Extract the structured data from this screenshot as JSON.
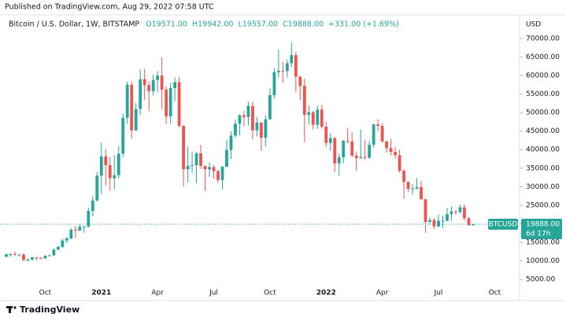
{
  "published": "Published on TradingView.com, Aug 29, 2022 07:58 UTC",
  "footer": "TradingView",
  "chart_data": {
    "type": "candlestick",
    "symbol": "Bitcoin / U.S. Dollar, 1W, BITSTAMP",
    "ohlc_labels": [
      "O19571.00",
      "H19942.00",
      "L19557.00",
      "C19888.00",
      "+331.00 (+1.69%)"
    ],
    "currency": "USD",
    "up_color": "#26a69a",
    "down_color": "#ef5350",
    "categories": [
      null,
      null,
      null,
      null,
      null,
      null,
      null,
      null,
      null,
      "Oct",
      null,
      null,
      null,
      null,
      null,
      null,
      null,
      null,
      null,
      null,
      null,
      null,
      "2021",
      null,
      null,
      null,
      null,
      null,
      null,
      null,
      null,
      null,
      null,
      null,
      null,
      "Apr",
      null,
      null,
      null,
      null,
      null,
      null,
      null,
      null,
      null,
      null,
      null,
      null,
      "Jul",
      null,
      null,
      null,
      null,
      null,
      null,
      null,
      null,
      null,
      null,
      null,
      null,
      "Oct",
      null,
      null,
      null,
      null,
      null,
      null,
      null,
      null,
      null,
      null,
      null,
      null,
      "2022",
      null,
      null,
      null,
      null,
      null,
      null,
      null,
      null,
      null,
      null,
      null,
      null,
      "Apr",
      null,
      null,
      null,
      null,
      null,
      null,
      null,
      null,
      null,
      null,
      null,
      null,
      "Jul",
      null,
      null,
      null,
      null,
      null,
      null,
      null,
      null,
      null,
      null,
      null,
      null,
      "Oct"
    ],
    "open": [
      11100,
      11780,
      11850,
      11650,
      11680,
      10250,
      10330,
      10940,
      10780,
      10670,
      11380,
      11500,
      13030,
      13760,
      15480,
      16050,
      18400,
      18190,
      19170,
      19270,
      23480,
      26280,
      33000,
      38200,
      35800,
      32270,
      33100,
      38900,
      48600,
      57500,
      45200,
      50970,
      59000,
      57400,
      55800,
      58800,
      60000,
      56200,
      49000,
      56600,
      58200,
      46400,
      34700,
      35600,
      35800,
      39000,
      35600,
      34700,
      35300,
      34200,
      31800,
      35400,
      39900,
      43800,
      47000,
      49300,
      48800,
      51800,
      45200,
      47300,
      43200,
      48200,
      54700,
      60900,
      61300,
      61200,
      63300,
      65500,
      59700,
      57200,
      49400,
      50100,
      46700,
      50800,
      46200,
      41800,
      43100,
      36300,
      37900,
      42400,
      42200,
      38400,
      37700,
      38000,
      37800,
      41300,
      46800,
      46400,
      42200,
      40400,
      39400,
      38500,
      34300,
      31300,
      29400,
      29500,
      29900,
      26600,
      20500,
      21000,
      19300,
      20800,
      20800,
      22600,
      23300,
      23180,
      24440,
      21500,
      19571,
      null,
      null,
      null,
      null,
      null
    ],
    "high": [
      11900,
      12090,
      12480,
      11800,
      12090,
      10600,
      11100,
      10990,
      10950,
      11500,
      11720,
      13350,
      14080,
      15960,
      16480,
      18800,
      19480,
      19920,
      19400,
      24300,
      27400,
      34000,
      41900,
      40100,
      37900,
      38500,
      40950,
      49700,
      58300,
      58400,
      52600,
      61700,
      61800,
      58400,
      60200,
      61200,
      64900,
      57100,
      58000,
      59500,
      59600,
      46600,
      40800,
      39500,
      39300,
      41300,
      35750,
      36600,
      35800,
      34600,
      35500,
      42600,
      45000,
      48100,
      49500,
      50500,
      52900,
      52900,
      48800,
      47400,
      49200,
      56500,
      62000,
      67000,
      63700,
      64300,
      69000,
      66300,
      59900,
      59100,
      51900,
      50500,
      51900,
      52100,
      47500,
      44400,
      43500,
      38900,
      42600,
      45800,
      44700,
      39500,
      45400,
      42600,
      42400,
      47000,
      48200,
      47200,
      42500,
      42900,
      40800,
      40000,
      34700,
      31400,
      30700,
      32300,
      31600,
      26800,
      21800,
      21500,
      22500,
      22300,
      24300,
      24700,
      23650,
      25200,
      25200,
      21800,
      19942,
      null,
      null,
      null,
      null,
      null
    ],
    "low": [
      11000,
      11150,
      11400,
      11130,
      9900,
      9880,
      10200,
      10130,
      10530,
      10530,
      11200,
      11400,
      12950,
      13520,
      14800,
      15800,
      16200,
      18000,
      17600,
      19000,
      22000,
      26000,
      28000,
      30300,
      28900,
      29300,
      32200,
      37900,
      47000,
      43000,
      45000,
      49300,
      53300,
      50400,
      54600,
      55500,
      50900,
      47000,
      47000,
      53000,
      46000,
      30000,
      31200,
      33800,
      31000,
      34800,
      28800,
      32700,
      32100,
      31000,
      29300,
      35300,
      37500,
      43200,
      43900,
      46400,
      46500,
      42800,
      43500,
      39600,
      40800,
      48000,
      53900,
      59500,
      58000,
      59400,
      62300,
      55600,
      53300,
      42000,
      46800,
      45500,
      45600,
      45700,
      40700,
      39600,
      34000,
      32900,
      36300,
      41700,
      38000,
      34300,
      37500,
      37200,
      37600,
      40500,
      45000,
      41900,
      39200,
      38500,
      37700,
      33800,
      26700,
      28600,
      28000,
      29300,
      26500,
      17600,
      19700,
      18600,
      19100,
      18900,
      20700,
      20800,
      22400,
      22700,
      20800,
      19800,
      19557,
      null,
      null,
      null,
      null,
      null
    ],
    "close": [
      11780,
      11850,
      11650,
      11680,
      10250,
      10330,
      10940,
      10780,
      10670,
      11380,
      11500,
      13030,
      13760,
      15480,
      16050,
      18400,
      18190,
      19170,
      19270,
      23480,
      26280,
      33000,
      38200,
      35800,
      32270,
      33100,
      38900,
      48600,
      57500,
      45200,
      50970,
      59000,
      57400,
      55800,
      58800,
      60000,
      56200,
      49000,
      56600,
      58200,
      46400,
      34700,
      35600,
      35800,
      39000,
      35600,
      34700,
      35300,
      34200,
      31800,
      35400,
      39900,
      43800,
      47000,
      49300,
      48800,
      51800,
      45200,
      47300,
      43200,
      48200,
      54700,
      60900,
      61300,
      61200,
      63300,
      65500,
      59700,
      57200,
      49400,
      50100,
      46700,
      50800,
      46200,
      41800,
      43100,
      36300,
      37900,
      42400,
      42200,
      38400,
      37700,
      38000,
      37800,
      41300,
      46800,
      46400,
      42200,
      40400,
      39400,
      38500,
      34300,
      31300,
      29400,
      29500,
      29900,
      26600,
      20500,
      21000,
      19300,
      20800,
      20800,
      22600,
      23300,
      23180,
      24440,
      21500,
      19571,
      19888,
      null,
      null,
      null,
      null,
      null
    ],
    "ylim": [
      2900,
      75700
    ],
    "yticks": [
      {
        "value": 5000,
        "label": "5000.00"
      },
      {
        "value": 10000,
        "label": "10000.00"
      },
      {
        "value": 15000,
        "label": "15000.00"
      },
      {
        "value": 20000,
        "label": "20000.00"
      },
      {
        "value": 25000,
        "label": "25000.00"
      },
      {
        "value": 30000,
        "label": "30000.00"
      },
      {
        "value": 35000,
        "label": "35000.00"
      },
      {
        "value": 40000,
        "label": "40000.00"
      },
      {
        "value": 45000,
        "label": "45000.00"
      },
      {
        "value": 50000,
        "label": "50000.00"
      },
      {
        "value": 55000,
        "label": "55000.00"
      },
      {
        "value": 60000,
        "label": "60000.00"
      },
      {
        "value": 65000,
        "label": "65000.00"
      },
      {
        "value": 70000,
        "label": "70000.00"
      }
    ],
    "last_price": {
      "value": 19888,
      "label": "19888.00"
    },
    "ticker": "BTCUSD",
    "countdown": "6d 17h",
    "grid": false
  }
}
